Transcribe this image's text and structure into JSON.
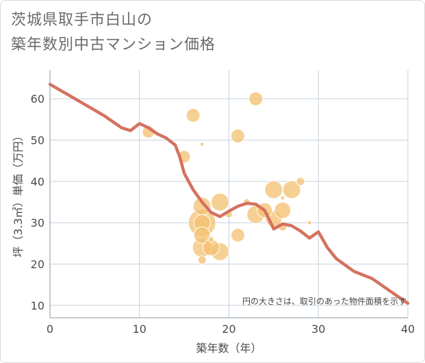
{
  "title": {
    "line1": "茨城県取手市白山の",
    "line2": "築年数別中古マンション価格"
  },
  "chart_data": {
    "type": "scatter",
    "xlabel": "築年数（年）",
    "ylabel": "坪（3.3㎡）単価（万円）",
    "xlim": [
      0,
      40
    ],
    "ylim": [
      7,
      67
    ],
    "xticks": [
      0,
      10,
      20,
      30,
      40
    ],
    "yticks": [
      10,
      20,
      30,
      40,
      50,
      60
    ],
    "grid": true,
    "note": "円の大きさは、取引のあった物件面積を示す",
    "colors": {
      "bubble": "#f3c06f",
      "line": "#d57160",
      "grid": "#c5d1dc",
      "plot_bg": "#ffffff"
    },
    "points": [
      {
        "x": 11,
        "y": 52,
        "s": 9
      },
      {
        "x": 15,
        "y": 46,
        "s": 9
      },
      {
        "x": 16,
        "y": 56,
        "s": 10
      },
      {
        "x": 17,
        "y": 49,
        "s": 3
      },
      {
        "x": 17,
        "y": 34,
        "s": 13
      },
      {
        "x": 17,
        "y": 30,
        "s": 20
      },
      {
        "x": 17,
        "y": 30,
        "s": 12
      },
      {
        "x": 17,
        "y": 27,
        "s": 12
      },
      {
        "x": 17,
        "y": 24,
        "s": 14
      },
      {
        "x": 17,
        "y": 21,
        "s": 6
      },
      {
        "x": 18,
        "y": 26,
        "s": 4
      },
      {
        "x": 18,
        "y": 24,
        "s": 12
      },
      {
        "x": 19,
        "y": 35,
        "s": 13
      },
      {
        "x": 19,
        "y": 23,
        "s": 13
      },
      {
        "x": 20,
        "y": 32,
        "s": 5
      },
      {
        "x": 21,
        "y": 51,
        "s": 10
      },
      {
        "x": 21,
        "y": 27,
        "s": 10
      },
      {
        "x": 22,
        "y": 35,
        "s": 5
      },
      {
        "x": 23,
        "y": 60,
        "s": 10
      },
      {
        "x": 23,
        "y": 32,
        "s": 13
      },
      {
        "x": 24,
        "y": 33,
        "s": 11
      },
      {
        "x": 25,
        "y": 38,
        "s": 13
      },
      {
        "x": 25,
        "y": 31,
        "s": 12
      },
      {
        "x": 26,
        "y": 36,
        "s": 3
      },
      {
        "x": 26,
        "y": 33,
        "s": 12
      },
      {
        "x": 26,
        "y": 29,
        "s": 6
      },
      {
        "x": 27,
        "y": 38,
        "s": 13
      },
      {
        "x": 28,
        "y": 40,
        "s": 6
      },
      {
        "x": 29,
        "y": 30,
        "s": 3
      }
    ],
    "series": [
      {
        "x": [
          0,
          2,
          4,
          6,
          8,
          9,
          10,
          11,
          12,
          13,
          14,
          14.5,
          15,
          16,
          17,
          18,
          19,
          20,
          21,
          22,
          23,
          24,
          25,
          26,
          27,
          28,
          29,
          30,
          31,
          32,
          34,
          36,
          38,
          40
        ],
        "y": [
          63.5,
          61,
          58.5,
          56,
          53,
          52.3,
          54,
          53,
          51.5,
          50.5,
          48.8,
          46,
          42,
          38,
          35,
          32.5,
          31.5,
          32.8,
          34,
          34.7,
          34.5,
          33,
          28.5,
          29.7,
          29.3,
          28,
          26.3,
          27.8,
          24,
          21.3,
          18.2,
          16.5,
          13.5,
          10.5
        ]
      }
    ]
  }
}
